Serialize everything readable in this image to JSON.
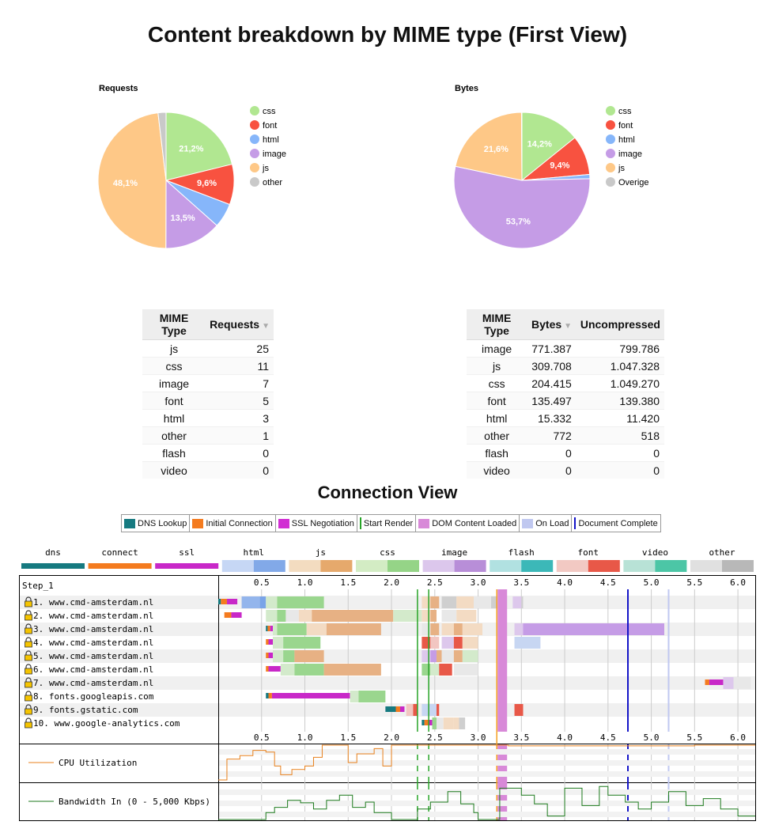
{
  "title": "Content breakdown by MIME type (First View)",
  "chart_data": [
    {
      "type": "pie",
      "title": "Requests",
      "labels": [
        "css",
        "font",
        "html",
        "image",
        "js",
        "other"
      ],
      "values": [
        21.2,
        9.6,
        5.8,
        13.5,
        48.1,
        1.9
      ],
      "slice_labels": [
        "21,2%",
        "9,6%",
        "",
        "13,5%",
        "48,1%",
        ""
      ],
      "colors": [
        "#b1e791",
        "#f85240",
        "#86b6fa",
        "#c59ce6",
        "#fec887",
        "#c9c9c9"
      ]
    },
    {
      "type": "pie",
      "title": "Bytes",
      "labels": [
        "css",
        "font",
        "html",
        "image",
        "js",
        "Overige"
      ],
      "values": [
        14.2,
        9.4,
        1.0,
        53.7,
        21.6,
        0.1
      ],
      "slice_labels": [
        "14,2%",
        "9,4%",
        "",
        "53,7%",
        "21,6%",
        ""
      ],
      "colors": [
        "#b1e791",
        "#f85240",
        "#86b6fa",
        "#c59ce6",
        "#fec887",
        "#c9c9c9"
      ]
    },
    {
      "type": "table",
      "columns": [
        "MIME Type",
        "Requests"
      ],
      "rows": [
        [
          "js",
          "25"
        ],
        [
          "css",
          "11"
        ],
        [
          "image",
          "7"
        ],
        [
          "font",
          "5"
        ],
        [
          "html",
          "3"
        ],
        [
          "other",
          "1"
        ],
        [
          "flash",
          "0"
        ],
        [
          "video",
          "0"
        ]
      ]
    },
    {
      "type": "table",
      "columns": [
        "MIME Type",
        "Bytes",
        "Uncompressed"
      ],
      "rows": [
        [
          "image",
          "771.387",
          "799.786"
        ],
        [
          "js",
          "309.708",
          "1.047.328"
        ],
        [
          "css",
          "204.415",
          "1.049.270"
        ],
        [
          "font",
          "135.497",
          "139.380"
        ],
        [
          "html",
          "15.332",
          "11.420"
        ],
        [
          "other",
          "772",
          "518"
        ],
        [
          "flash",
          "0",
          "0"
        ],
        [
          "video",
          "0",
          "0"
        ]
      ]
    },
    {
      "type": "bar",
      "title": "Connection View",
      "xlim": [
        0.0,
        6.2
      ],
      "ticks": [
        "0.5",
        "1.0",
        "1.5",
        "2.0",
        "2.5",
        "3.0",
        "3.5",
        "4.0",
        "4.5",
        "5.0",
        "5.5",
        "6.0"
      ],
      "tick_values": [
        0.5,
        1.0,
        1.5,
        2.0,
        2.5,
        3.0,
        3.5,
        4.0,
        4.5,
        5.0,
        5.5,
        6.0
      ],
      "step_label": "Step_1",
      "rows": [
        " 1. www.cmd-amsterdam.nl",
        " 2. www.cmd-amsterdam.nl",
        " 3. www.cmd-amsterdam.nl",
        " 4. www.cmd-amsterdam.nl",
        " 5. www.cmd-amsterdam.nl",
        " 6. www.cmd-amsterdam.nl",
        " 7. www.cmd-amsterdam.nl",
        " 8. fonts.googleapis.com",
        " 9. fonts.gstatic.com",
        "10. www.google-analytics.com"
      ],
      "bars": [
        [
          [
            0.0,
            0.03,
            "dns"
          ],
          [
            0.03,
            0.1,
            "connect"
          ],
          [
            0.1,
            0.22,
            "ssl"
          ],
          [
            0.27,
            0.48,
            "html"
          ],
          [
            0.48,
            0.55,
            "htmldk"
          ],
          [
            0.55,
            0.68,
            "cssl"
          ],
          [
            0.68,
            1.22,
            "css"
          ],
          [
            2.35,
            2.45,
            "jsl"
          ],
          [
            2.45,
            2.55,
            "js"
          ],
          [
            2.58,
            2.75,
            "gray"
          ],
          [
            2.75,
            2.95,
            "jsl"
          ],
          [
            2.95,
            3.15,
            "grayl"
          ],
          [
            3.15,
            3.22,
            "gray"
          ],
          [
            3.4,
            3.5,
            "imagel"
          ],
          [
            3.5,
            3.52,
            "gray"
          ]
        ],
        [
          [
            0.07,
            0.15,
            "connect"
          ],
          [
            0.15,
            0.27,
            "ssl"
          ],
          [
            0.55,
            0.68,
            "cssl"
          ],
          [
            0.68,
            0.78,
            "css"
          ],
          [
            0.78,
            0.93,
            "grayl"
          ],
          [
            0.93,
            1.08,
            "jsl"
          ],
          [
            1.08,
            2.02,
            "js"
          ],
          [
            2.02,
            2.35,
            "cssl"
          ],
          [
            2.35,
            2.45,
            "jsl"
          ],
          [
            2.45,
            2.52,
            "js"
          ],
          [
            2.58,
            2.75,
            "grayl"
          ],
          [
            2.75,
            2.98,
            "jsl"
          ]
        ],
        [
          [
            0.55,
            0.57,
            "dns"
          ],
          [
            0.57,
            0.6,
            "connect"
          ],
          [
            0.6,
            0.63,
            "ssl"
          ],
          [
            0.63,
            0.68,
            "cssl"
          ],
          [
            0.68,
            1.02,
            "css"
          ],
          [
            1.02,
            1.25,
            "jsl"
          ],
          [
            1.25,
            1.88,
            "js"
          ],
          [
            2.35,
            2.45,
            "grayl"
          ],
          [
            2.45,
            2.55,
            "js"
          ],
          [
            2.58,
            2.72,
            "jsl"
          ],
          [
            2.72,
            2.82,
            "js"
          ],
          [
            2.82,
            3.05,
            "jsl"
          ],
          [
            3.42,
            3.52,
            "imagel"
          ],
          [
            3.52,
            5.15,
            "image"
          ]
        ],
        [
          [
            0.55,
            0.58,
            "connect"
          ],
          [
            0.58,
            0.63,
            "ssl"
          ],
          [
            0.63,
            0.75,
            "cssl"
          ],
          [
            0.75,
            1.18,
            "css"
          ],
          [
            2.35,
            2.45,
            "font"
          ],
          [
            2.45,
            2.55,
            "fontl"
          ],
          [
            2.58,
            2.72,
            "imagel"
          ],
          [
            2.72,
            2.82,
            "font"
          ],
          [
            2.82,
            3.0,
            "jsl"
          ],
          [
            3.42,
            3.72,
            "htmll"
          ]
        ],
        [
          [
            0.55,
            0.58,
            "connect"
          ],
          [
            0.58,
            0.63,
            "ssl"
          ],
          [
            0.63,
            0.75,
            "cssl"
          ],
          [
            0.75,
            0.88,
            "css"
          ],
          [
            0.88,
            1.22,
            "js"
          ],
          [
            2.35,
            2.45,
            "imagel"
          ],
          [
            2.45,
            2.52,
            "image"
          ],
          [
            2.52,
            2.58,
            "js"
          ],
          [
            2.58,
            2.72,
            "grayl"
          ],
          [
            2.72,
            2.82,
            "js"
          ],
          [
            2.82,
            3.0,
            "cssl"
          ]
        ],
        [
          [
            0.55,
            0.58,
            "connect"
          ],
          [
            0.58,
            0.72,
            "ssl"
          ],
          [
            0.72,
            0.88,
            "cssl"
          ],
          [
            0.88,
            1.22,
            "css"
          ],
          [
            1.22,
            1.88,
            "js"
          ],
          [
            2.35,
            2.45,
            "css"
          ],
          [
            2.45,
            2.55,
            "cssl"
          ],
          [
            2.55,
            2.7,
            "font"
          ],
          [
            2.72,
            3.0,
            "grayl"
          ]
        ],
        [
          [
            5.62,
            5.67,
            "connect"
          ],
          [
            5.67,
            5.83,
            "ssl"
          ],
          [
            5.83,
            5.95,
            "imagel"
          ],
          [
            5.95,
            6.15,
            "grayl"
          ]
        ],
        [
          [
            0.55,
            0.58,
            "dns"
          ],
          [
            0.58,
            0.62,
            "connect"
          ],
          [
            0.62,
            1.52,
            "ssl"
          ],
          [
            1.52,
            1.62,
            "cssl"
          ],
          [
            1.62,
            1.93,
            "css"
          ]
        ],
        [
          [
            1.93,
            2.05,
            "dns"
          ],
          [
            2.05,
            2.1,
            "connect"
          ],
          [
            2.1,
            2.15,
            "ssl"
          ],
          [
            2.17,
            2.25,
            "fontl"
          ],
          [
            2.25,
            2.3,
            "font"
          ],
          [
            2.35,
            2.52,
            "htmll"
          ],
          [
            2.52,
            2.55,
            "font"
          ],
          [
            3.42,
            3.52,
            "font"
          ]
        ],
        [
          [
            2.35,
            2.38,
            "dns"
          ],
          [
            2.38,
            2.43,
            "connect"
          ],
          [
            2.43,
            2.47,
            "ssl"
          ],
          [
            2.47,
            2.52,
            "css"
          ],
          [
            2.52,
            2.6,
            "grayl"
          ],
          [
            2.6,
            2.72,
            "jsl"
          ],
          [
            2.72,
            2.78,
            "jsl"
          ],
          [
            2.78,
            2.85,
            "gray"
          ]
        ]
      ],
      "markers": [
        {
          "label": "Start Render",
          "x": 2.3,
          "color": "#28a428"
        },
        {
          "label": "Start Render",
          "x": 2.43,
          "color": "#28a428"
        },
        {
          "label": "DOM Content Loaded",
          "x": 3.28,
          "color": "#d889d8"
        },
        {
          "label": "On Load",
          "x": 5.2,
          "color": "#c0c8f0"
        },
        {
          "label": "Document Complete",
          "x": 4.73,
          "color": "#1414c8"
        }
      ],
      "cpu_label": "CPU Utilization",
      "bandwidth_label": "Bandwidth In (0 - 5,000 Kbps)"
    }
  ],
  "legend_top": [
    {
      "label": "DNS Lookup",
      "color": "#167a80"
    },
    {
      "label": "Initial Connection",
      "color": "#f47b1f"
    },
    {
      "label": "SSL Negotiation",
      "color": "#d12ed3"
    },
    {
      "label": "Start Render",
      "color": "#28a428"
    },
    {
      "label": "DOM Content Loaded",
      "color": "#d889d8"
    },
    {
      "label": "On Load",
      "color": "#c0c8f0"
    },
    {
      "label": "Document Complete",
      "color": "#1414c8"
    }
  ],
  "legend_types": [
    "dns",
    "connect",
    "ssl",
    "html",
    "js",
    "css",
    "image",
    "flash",
    "font",
    "video",
    "other"
  ]
}
